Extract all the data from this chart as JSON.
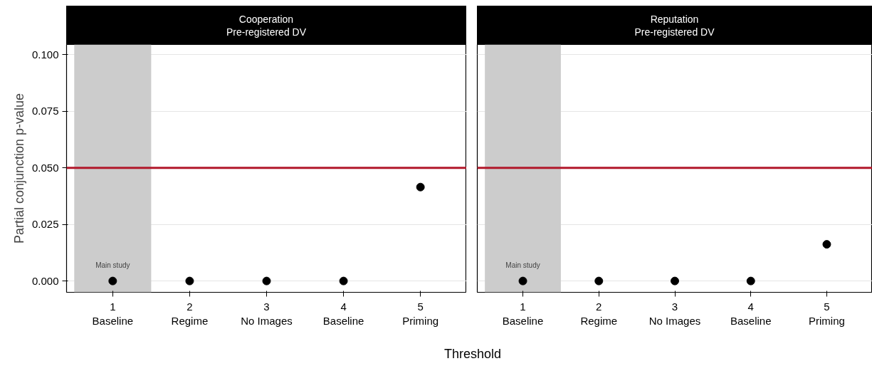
{
  "chart_data": [
    {
      "type": "scatter",
      "title": "Cooperation\nPre-registered DV",
      "xlabel": "Threshold",
      "ylabel": "Partial conjunction p-value",
      "x": [
        1,
        2,
        3,
        4,
        5
      ],
      "values": [
        0,
        0,
        0,
        0,
        0.0415
      ],
      "color": "#000000",
      "marker": "circle",
      "xlim": [
        0.4,
        5.6
      ],
      "xticks": [
        {
          "value": 1,
          "label": "1\nBaseline"
        },
        {
          "value": 2,
          "label": "2\nRegime"
        },
        {
          "value": 3,
          "label": "3\nNo Images"
        },
        {
          "value": 4,
          "label": "4\nBaseline"
        },
        {
          "value": 5,
          "label": "5\nPriming"
        }
      ],
      "ylim": [
        -0.005,
        0.1045
      ],
      "yticks": [
        {
          "value": 0,
          "label": "0.000"
        },
        {
          "value": 0.025,
          "label": "0.025"
        },
        {
          "value": 0.05,
          "label": "0.050"
        },
        {
          "value": 0.075,
          "label": "0.075"
        },
        {
          "value": 0.1,
          "label": "0.100"
        }
      ],
      "grid": "y",
      "ref_lines": [
        {
          "axis": "y",
          "value": 0.05,
          "color": "#b2182b"
        }
      ],
      "bands": [
        {
          "axis": "x",
          "from": 0.5,
          "to": 1.5,
          "color": "#cccccc"
        }
      ],
      "annotations": [
        "Main study"
      ]
    },
    {
      "type": "scatter",
      "title": "Reputation\nPre-registered DV",
      "x": [
        1,
        2,
        3,
        4,
        5
      ],
      "values": [
        0,
        0,
        0,
        0,
        0.0162
      ],
      "color": "#000000",
      "marker": "circle",
      "xlim": [
        0.4,
        5.6
      ],
      "xticks": [
        {
          "value": 1,
          "label": "1\nBaseline"
        },
        {
          "value": 2,
          "label": "2\nRegime"
        },
        {
          "value": 3,
          "label": "3\nNo Images"
        },
        {
          "value": 4,
          "label": "4\nBaseline"
        },
        {
          "value": 5,
          "label": "5\nPriming"
        }
      ],
      "ylim": [
        -0.005,
        0.1045
      ],
      "yticks": [
        0,
        0.025,
        0.05,
        0.075,
        0.1
      ],
      "grid": "y",
      "tick_labels": "x",
      "ref_lines": [
        {
          "axis": "y",
          "value": 0.05,
          "color": "#b2182b"
        }
      ],
      "bands": [
        {
          "axis": "x",
          "from": 0.5,
          "to": 1.5,
          "color": "#cccccc"
        }
      ],
      "annotations": [
        "Main study"
      ]
    }
  ]
}
